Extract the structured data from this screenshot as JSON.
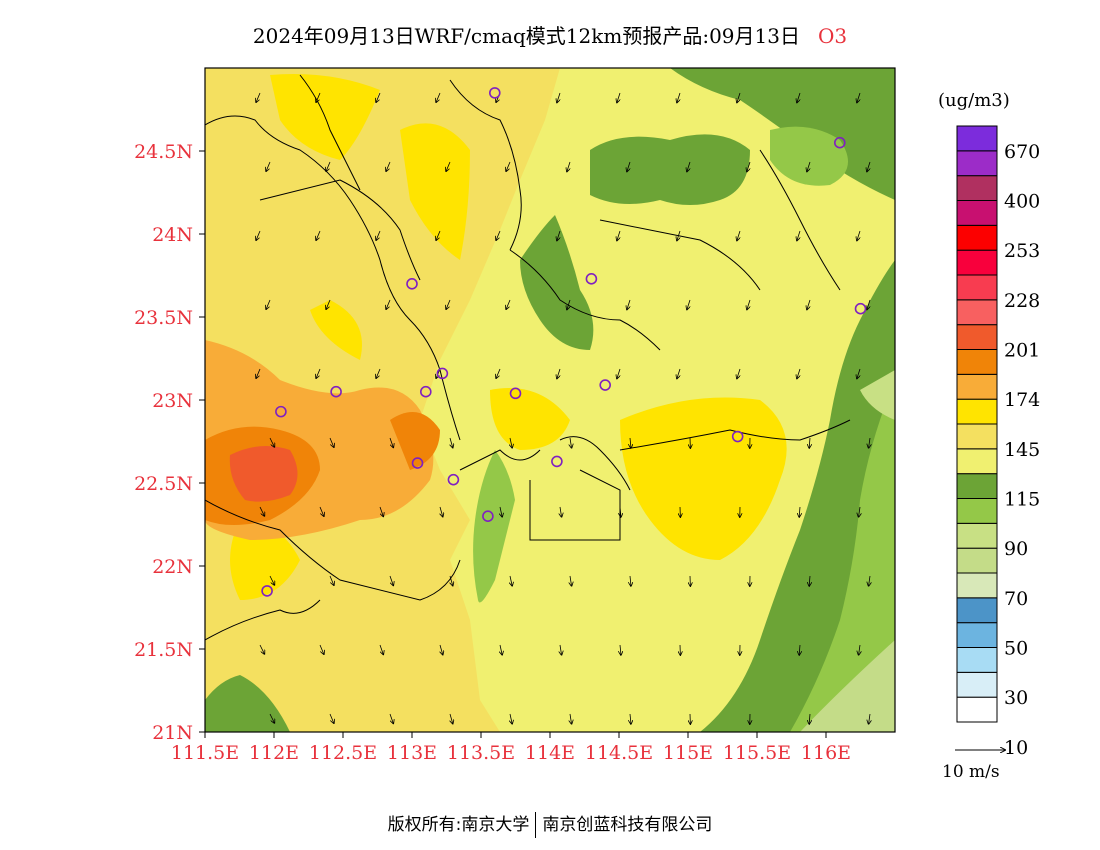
{
  "title": {
    "text": "2024年09月13日WRF/cmaq模式12km预报产品:09月13日",
    "species": "O3"
  },
  "map": {
    "lat_labels": [
      "24.5N",
      "24N",
      "23.5N",
      "23N",
      "22.5N",
      "22N",
      "21.5N",
      "21N"
    ],
    "lon_labels": [
      "111.5E",
      "112E",
      "112.5E",
      "113E",
      "113.5E",
      "114E",
      "114.5E",
      "115E",
      "115.5E",
      "116E"
    ],
    "lon_range": [
      111.5,
      116.5
    ],
    "lat_range": [
      21.0,
      25.0
    ],
    "stations": [
      {
        "lon": 113.6,
        "lat": 24.85
      },
      {
        "lon": 116.1,
        "lat": 24.55
      },
      {
        "lon": 113.0,
        "lat": 23.7
      },
      {
        "lon": 114.3,
        "lat": 23.73
      },
      {
        "lon": 116.25,
        "lat": 23.55
      },
      {
        "lon": 112.45,
        "lat": 23.05
      },
      {
        "lon": 113.1,
        "lat": 23.05
      },
      {
        "lon": 113.22,
        "lat": 23.16
      },
      {
        "lon": 113.75,
        "lat": 23.04
      },
      {
        "lon": 114.4,
        "lat": 23.09
      },
      {
        "lon": 112.05,
        "lat": 22.93
      },
      {
        "lon": 113.04,
        "lat": 22.62
      },
      {
        "lon": 113.3,
        "lat": 22.52
      },
      {
        "lon": 113.55,
        "lat": 22.3
      },
      {
        "lon": 114.05,
        "lat": 22.63
      },
      {
        "lon": 115.36,
        "lat": 22.78
      },
      {
        "lon": 111.95,
        "lat": 21.85
      }
    ]
  },
  "legend": {
    "unit": "(ug/m3)",
    "labels": [
      "670",
      "400",
      "253",
      "228",
      "201",
      "174",
      "145",
      "115",
      "90",
      "70",
      "50",
      "30",
      "10"
    ],
    "colors": [
      "#ffffff",
      "#d8eef7",
      "#a8dcf4",
      "#6cb4e0",
      "#4c94c8",
      "#d8e8b8",
      "#c4dc88",
      "#c8e084",
      "#94c848",
      "#6ca436",
      "#f0f070",
      "#f4e060",
      "#ffe400",
      "#f8ac38",
      "#f08408",
      "#f05a2c",
      "#f86060",
      "#f83c50",
      "#f8003c",
      "#fc0000",
      "#c81070",
      "#b03060",
      "#9c2cc8",
      "#7c2cdc"
    ],
    "vector_label": "10 m/s"
  },
  "footer": {
    "left": "版权所有:南京大学",
    "right": "南京创蓝科技有限公司"
  }
}
